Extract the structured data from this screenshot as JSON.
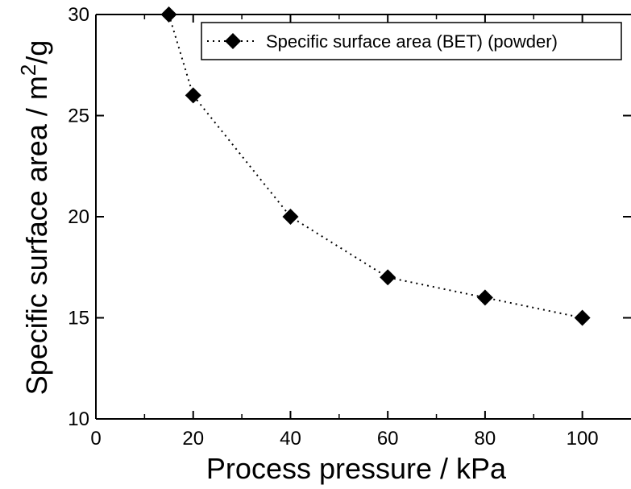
{
  "chart_data": {
    "type": "line",
    "title": "",
    "xlabel": "Process pressure / kPa",
    "ylabel_main": "Specific surface area / m",
    "ylabel_sup": "2",
    "ylabel_end": "/g",
    "xlim": [
      0,
      110
    ],
    "ylim": [
      10,
      30
    ],
    "xticks": [
      0,
      20,
      40,
      60,
      80,
      100
    ],
    "yticks": [
      10,
      15,
      20,
      25,
      30
    ],
    "grid": false,
    "legend_position": "top-right",
    "series": [
      {
        "name": "Specific surface area (BET) (powder)",
        "marker": "diamond",
        "line_style": "dotted",
        "color": "#000000",
        "x": [
          15,
          20,
          40,
          60,
          80,
          100
        ],
        "y": [
          30,
          26,
          20,
          17,
          16,
          15
        ]
      }
    ]
  }
}
